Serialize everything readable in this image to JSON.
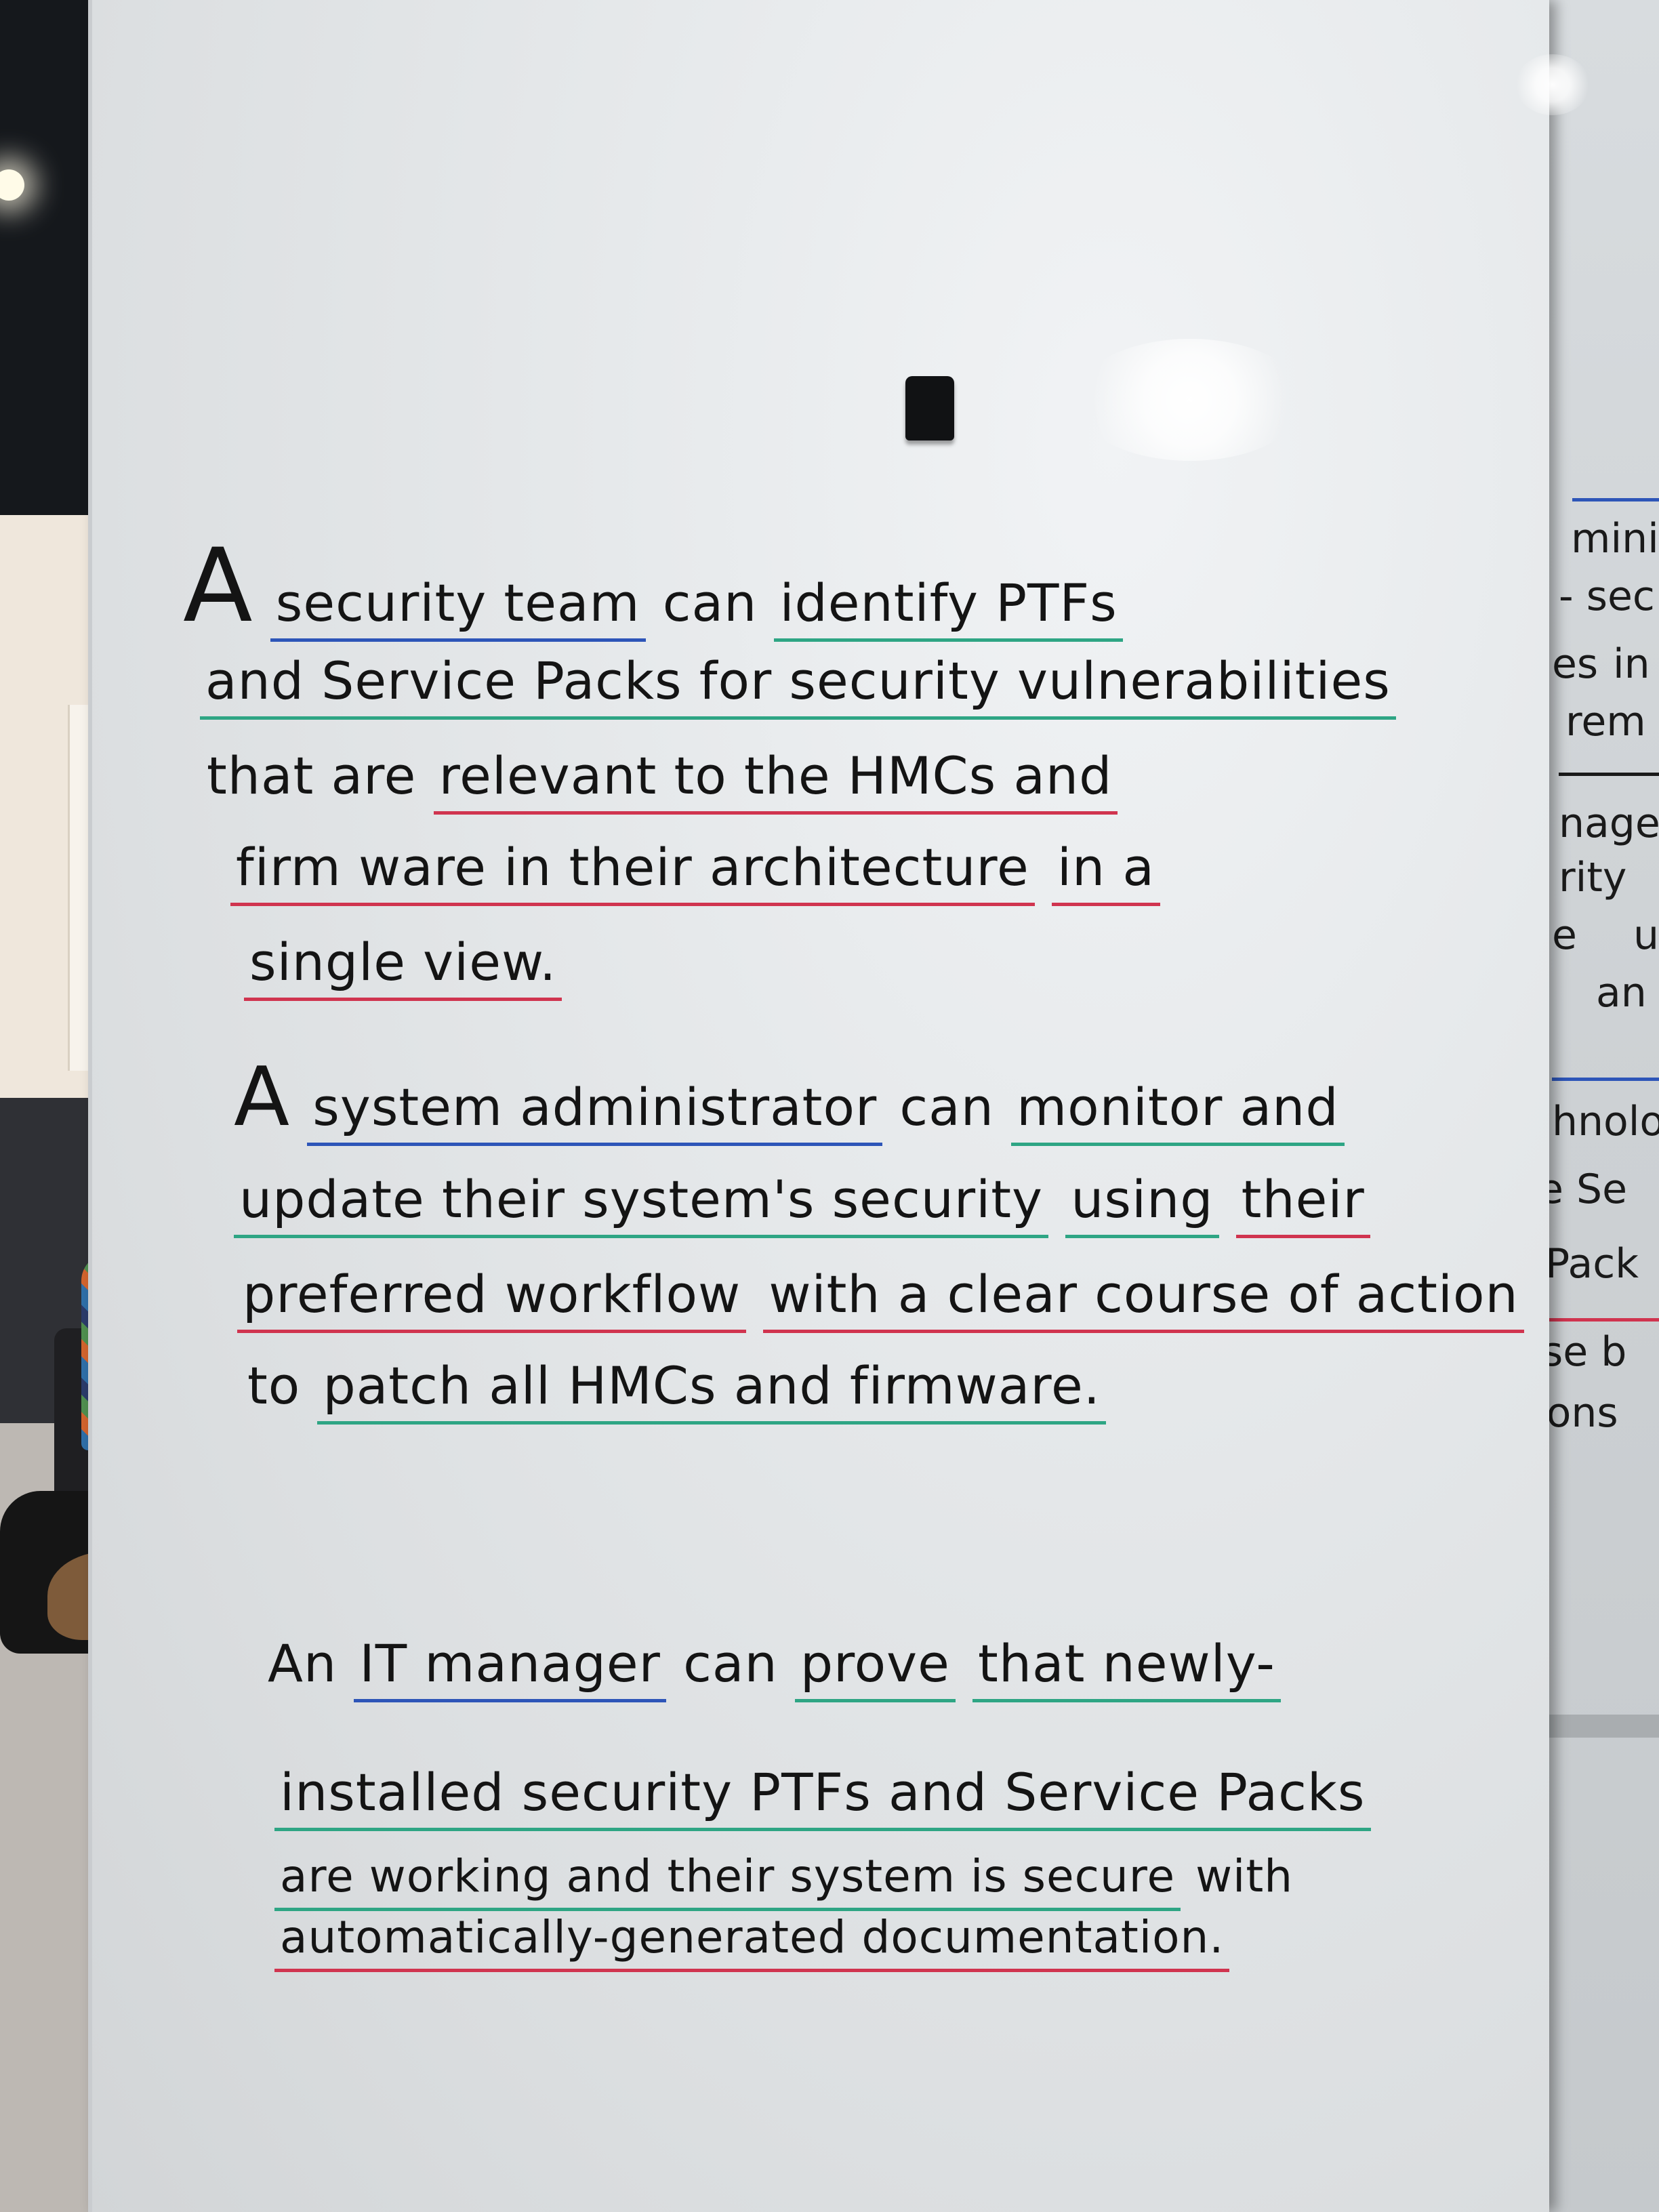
{
  "main_board": {
    "stories": [
      {
        "lines": [
          [
            "A",
            "security team",
            "can",
            "identify PTFs"
          ],
          [
            "and Service Packs for security vulnerabilities"
          ],
          [
            "that are",
            "relevant to the HMCs and"
          ],
          [
            "firm ware in their architecture",
            "in a"
          ],
          [
            "single view."
          ]
        ]
      },
      {
        "lines": [
          [
            "A",
            "system administrator",
            "can",
            "monitor and"
          ],
          [
            "update their system's security",
            "using",
            "their"
          ],
          [
            "preferred workflow",
            "with a clear course of action"
          ],
          [
            "to",
            "patch all HMCs and firmware."
          ]
        ]
      },
      {
        "lines": [
          [
            "An",
            "IT manager",
            "can",
            "prove",
            "that newly-"
          ],
          [
            "installed security PTFs and Service Packs"
          ],
          [
            "are working and their system is secure",
            "with"
          ],
          [
            "automatically-generated documentation."
          ]
        ]
      }
    ]
  },
  "side_board": {
    "fragments": [
      "minis",
      "- sec",
      "es",
      "in",
      "rem",
      "nage",
      "rity",
      "e",
      "u",
      "an",
      "hnolo",
      "e Se",
      "Pack",
      "se b",
      "ions"
    ]
  },
  "colors": {
    "persona_underline": "#2d55b8",
    "goal_underline": "#2ea584",
    "detail_underline": "#d0344f",
    "marker_text": "#141414",
    "board": "#e6e9eb"
  }
}
